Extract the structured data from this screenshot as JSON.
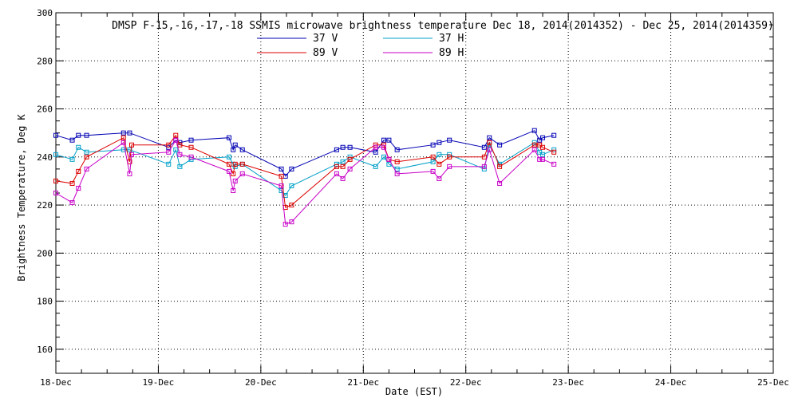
{
  "chart_data": {
    "type": "line",
    "title": "DMSP F-15,-16,-17,-18 SSMIS microwave brightness temperature Dec 18, 2014(2014352) - Dec 25, 2014(2014359)",
    "xlabel": "Date (EST)",
    "ylabel": "Brightness Temperature, Deg K",
    "xlim": [
      0,
      7
    ],
    "ylim": [
      150,
      300
    ],
    "x_ticks": [
      {
        "value": 0,
        "label": "18-Dec"
      },
      {
        "value": 1,
        "label": "19-Dec"
      },
      {
        "value": 2,
        "label": "20-Dec"
      },
      {
        "value": 3,
        "label": "21-Dec"
      },
      {
        "value": 4,
        "label": "22-Dec"
      },
      {
        "value": 5,
        "label": "23-Dec"
      },
      {
        "value": 6,
        "label": "24-Dec"
      },
      {
        "value": 7,
        "label": "25-Dec"
      }
    ],
    "y_ticks": [
      160,
      180,
      200,
      220,
      240,
      260,
      280,
      300
    ],
    "x_units": "days since 18-Dec 00:00",
    "grid": true,
    "legend_position": "top-center",
    "series": [
      {
        "name": "37 V",
        "color": "#0000b4",
        "points": [
          [
            0.0,
            249
          ],
          [
            0.16,
            247
          ],
          [
            0.22,
            249
          ],
          [
            0.3,
            249
          ],
          [
            0.66,
            250
          ],
          [
            0.72,
            250
          ],
          [
            1.1,
            244
          ],
          [
            1.17,
            247
          ],
          [
            1.21,
            246
          ],
          [
            1.32,
            247
          ],
          [
            1.69,
            248
          ],
          [
            1.73,
            243
          ],
          [
            1.75,
            245
          ],
          [
            1.82,
            243
          ],
          [
            2.2,
            235
          ],
          [
            2.24,
            232
          ],
          [
            2.3,
            235
          ],
          [
            2.74,
            243
          ],
          [
            2.8,
            244
          ],
          [
            2.87,
            244
          ],
          [
            3.12,
            242
          ],
          [
            3.2,
            247
          ],
          [
            3.25,
            247
          ],
          [
            3.33,
            243
          ],
          [
            3.68,
            245
          ],
          [
            3.74,
            246
          ],
          [
            3.84,
            247
          ],
          [
            4.18,
            244
          ],
          [
            4.23,
            248
          ],
          [
            4.33,
            245
          ],
          [
            4.67,
            251
          ],
          [
            4.72,
            247
          ],
          [
            4.75,
            248
          ],
          [
            4.86,
            249
          ]
        ]
      },
      {
        "name": "37 H",
        "color": "#00a0c8",
        "points": [
          [
            0.0,
            241
          ],
          [
            0.16,
            239
          ],
          [
            0.22,
            244
          ],
          [
            0.3,
            242
          ],
          [
            0.66,
            243
          ],
          [
            0.72,
            243
          ],
          [
            1.1,
            237
          ],
          [
            1.17,
            243
          ],
          [
            1.21,
            236
          ],
          [
            1.32,
            239
          ],
          [
            1.69,
            240
          ],
          [
            1.73,
            237
          ],
          [
            1.75,
            236
          ],
          [
            1.82,
            237
          ],
          [
            2.2,
            226
          ],
          [
            2.24,
            224
          ],
          [
            2.3,
            228
          ],
          [
            2.74,
            237
          ],
          [
            2.8,
            238
          ],
          [
            2.87,
            240
          ],
          [
            3.12,
            236
          ],
          [
            3.2,
            240
          ],
          [
            3.25,
            237
          ],
          [
            3.33,
            235
          ],
          [
            3.68,
            238
          ],
          [
            3.74,
            241
          ],
          [
            3.84,
            241
          ],
          [
            4.18,
            235
          ],
          [
            4.23,
            245
          ],
          [
            4.33,
            237
          ],
          [
            4.67,
            246
          ],
          [
            4.72,
            242
          ],
          [
            4.75,
            241
          ],
          [
            4.86,
            243
          ]
        ]
      },
      {
        "name": "89 V",
        "color": "#dc0000",
        "points": [
          [
            0.0,
            230
          ],
          [
            0.16,
            229
          ],
          [
            0.22,
            234
          ],
          [
            0.3,
            240
          ],
          [
            0.66,
            248
          ],
          [
            0.72,
            238
          ],
          [
            0.74,
            245
          ],
          [
            1.1,
            245
          ],
          [
            1.17,
            249
          ],
          [
            1.21,
            245
          ],
          [
            1.32,
            244
          ],
          [
            1.69,
            237
          ],
          [
            1.73,
            233
          ],
          [
            1.75,
            237
          ],
          [
            1.82,
            237
          ],
          [
            2.2,
            232
          ],
          [
            2.24,
            219
          ],
          [
            2.3,
            220
          ],
          [
            2.74,
            236
          ],
          [
            2.8,
            236
          ],
          [
            2.87,
            239
          ],
          [
            3.12,
            245
          ],
          [
            3.2,
            245
          ],
          [
            3.25,
            239
          ],
          [
            3.33,
            238
          ],
          [
            3.68,
            240
          ],
          [
            3.74,
            237
          ],
          [
            3.84,
            240
          ],
          [
            4.18,
            240
          ],
          [
            4.23,
            246
          ],
          [
            4.33,
            236
          ],
          [
            4.67,
            245
          ],
          [
            4.72,
            245
          ],
          [
            4.75,
            244
          ],
          [
            4.86,
            242
          ]
        ]
      },
      {
        "name": "89 H",
        "color": "#c800c8",
        "points": [
          [
            0.0,
            225
          ],
          [
            0.16,
            221
          ],
          [
            0.22,
            227
          ],
          [
            0.3,
            235
          ],
          [
            0.66,
            246
          ],
          [
            0.72,
            233
          ],
          [
            0.74,
            241
          ],
          [
            1.1,
            242
          ],
          [
            1.17,
            247
          ],
          [
            1.21,
            241
          ],
          [
            1.32,
            240
          ],
          [
            1.69,
            234
          ],
          [
            1.73,
            226
          ],
          [
            1.75,
            230
          ],
          [
            1.82,
            233
          ],
          [
            2.2,
            228
          ],
          [
            2.24,
            212
          ],
          [
            2.3,
            213
          ],
          [
            2.74,
            233
          ],
          [
            2.8,
            231
          ],
          [
            2.87,
            235
          ],
          [
            3.12,
            244
          ],
          [
            3.2,
            244
          ],
          [
            3.25,
            239
          ],
          [
            3.33,
            233
          ],
          [
            3.68,
            234
          ],
          [
            3.74,
            231
          ],
          [
            3.84,
            236
          ],
          [
            4.18,
            236
          ],
          [
            4.23,
            243
          ],
          [
            4.33,
            229
          ],
          [
            4.67,
            243
          ],
          [
            4.72,
            239
          ],
          [
            4.75,
            239
          ],
          [
            4.86,
            237
          ]
        ]
      }
    ]
  }
}
